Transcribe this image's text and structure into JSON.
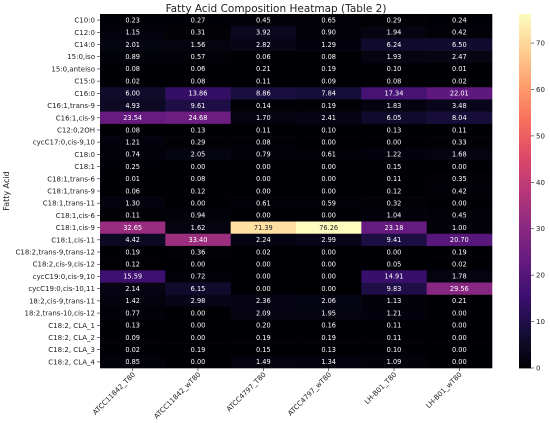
{
  "chart_data": {
    "type": "heatmap",
    "title": "Fatty Acid Composition Heatmap (Table 2)",
    "ylabel": "Fatty Acid",
    "xlabel": "",
    "columns": [
      "ATCC11842_T80",
      "ATCC11842_wT80",
      "ATCC4797_T80",
      "ATCC4797_wT80",
      "LH-B01_T80",
      "LH-B01_wT80"
    ],
    "rows": [
      "C10:0",
      "C12:0",
      "C14:0",
      "15:0,iso",
      "15:0,anteiso",
      "C15:0",
      "C16:0",
      "C16:1,trans-9",
      "C16:1,cis-9",
      "C12:0,2OH",
      "cycC17:0,cis-9,10",
      "C18:0",
      "C18:1",
      "C18:1,trans-6",
      "C18:1,trans-9",
      "C18:1,trans-11",
      "C18:1,cis-6",
      "C18:1,cis-9",
      "C18:1,cis-11",
      "C18:2,trans-9,trans-12",
      "C18:2,cis-9,cis-12",
      "cycC19:0,cis-9,10",
      "cycC19:0,cis-10,11",
      "18:2,cis-9,trans-11",
      "18:2,trans-10,cis-12",
      "C18:2, CLA_1",
      "C18:2, CLA_2",
      "C18:2, CLA_3",
      "C18:2, CLA_4"
    ],
    "values": [
      [
        "0.23",
        "0.27",
        "0.45",
        "0.65",
        "0.29",
        "0.24"
      ],
      [
        "1.15",
        "0.31",
        "3.92",
        "0.90",
        "1.94",
        "0.42"
      ],
      [
        "2.01",
        "1.56",
        "2.82",
        "1.29",
        "6.24",
        "6.50"
      ],
      [
        "0.89",
        "0.57",
        "0.06",
        "0.08",
        "1.93",
        "2.47"
      ],
      [
        "0.08",
        "0.06",
        "0.21",
        "0.19",
        "0.10",
        "0.01"
      ],
      [
        "0.02",
        "0.08",
        "0.11",
        "0.09",
        "0.08",
        "0.02"
      ],
      [
        "6.00",
        "13.86",
        "8.86",
        "7.84",
        "17.34",
        "22.01"
      ],
      [
        "4.93",
        "9.61",
        "0.14",
        "0.19",
        "1.83",
        "3.48"
      ],
      [
        "23.54",
        "24.68",
        "1.70",
        "2.41",
        "6.05",
        "8.04"
      ],
      [
        "0.08",
        "0.13",
        "0.11",
        "0.10",
        "0.13",
        "0.11"
      ],
      [
        "1.21",
        "0.29",
        "0.08",
        "0.00",
        "0.00",
        "0.33"
      ],
      [
        "0.74",
        "2.05",
        "0.79",
        "0.61",
        "1.22",
        "1.68"
      ],
      [
        "0.25",
        "0.00",
        "0.00",
        "0.00",
        "0.15",
        "0.00"
      ],
      [
        "0.01",
        "0.08",
        "0.00",
        "0.00",
        "0.11",
        "0.35"
      ],
      [
        "0.06",
        "0.12",
        "0.00",
        "0.00",
        "0.12",
        "0.42"
      ],
      [
        "1.30",
        "0.00",
        "0.61",
        "0.59",
        "0.32",
        "0.00"
      ],
      [
        "0.11",
        "0.94",
        "0.00",
        "0.00",
        "1.04",
        "0.45"
      ],
      [
        "32.65",
        "1.62",
        "71.39",
        "76.26",
        "23.18",
        "1.00"
      ],
      [
        "4.42",
        "33.40",
        "2.24",
        "2.99",
        "9.41",
        "20.70"
      ],
      [
        "0.19",
        "0.36",
        "0.02",
        "0.00",
        "0.00",
        "0.19"
      ],
      [
        "0.12",
        "0.00",
        "0.00",
        "0.00",
        "0.05",
        "0.02"
      ],
      [
        "15.59",
        "0.72",
        "0.00",
        "0.00",
        "14.91",
        "1.78"
      ],
      [
        "2.14",
        "6.15",
        "0.00",
        "0.00",
        "9.83",
        "29.56"
      ],
      [
        "1.42",
        "2.98",
        "2.36",
        "2.06",
        "1.13",
        "0.21"
      ],
      [
        "0.77",
        "0.00",
        "2.09",
        "1.95",
        "1.21",
        "0.00"
      ],
      [
        "0.13",
        "0.00",
        "0.20",
        "0.16",
        "0.11",
        "0.00"
      ],
      [
        "0.09",
        "0.00",
        "0.19",
        "0.19",
        "0.11",
        "0.00"
      ],
      [
        "0.02",
        "0.19",
        "0.15",
        "0.13",
        "0.10",
        "0.00"
      ],
      [
        "0.85",
        "0.00",
        "1.49",
        "1.34",
        "1.09",
        "0.00"
      ]
    ],
    "colorbar": {
      "colormap": "magma",
      "min": 0,
      "max": 76.26,
      "ticks": [
        0,
        10,
        20,
        30,
        40,
        50,
        60,
        70
      ]
    },
    "grid": false,
    "legend": "colorbar-right"
  }
}
